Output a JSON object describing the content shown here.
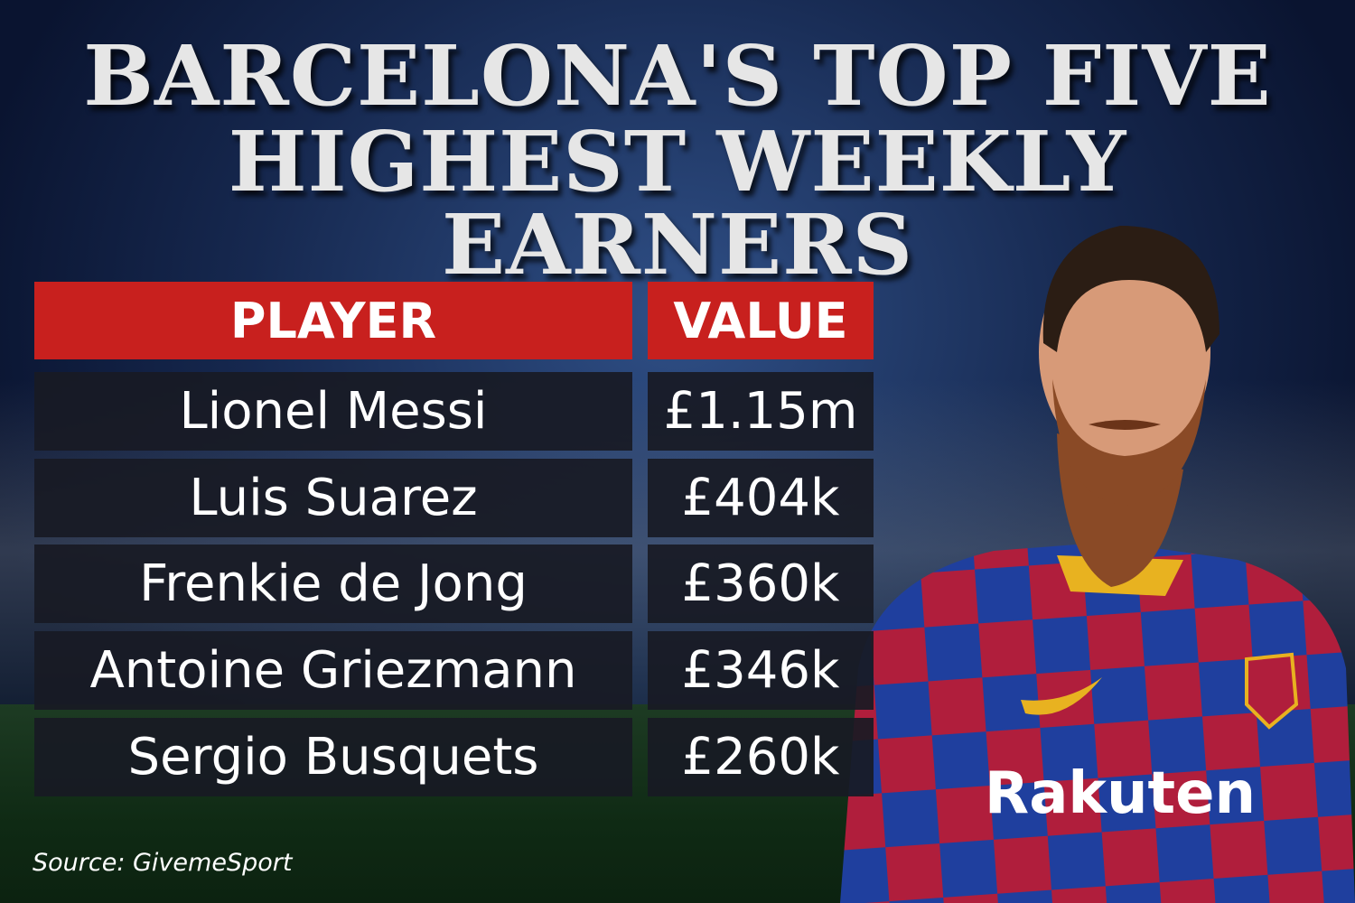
{
  "title": {
    "lines": [
      "BARCELONA'S TOP FIVE",
      "HIGHEST WEEKLY EARNERS"
    ]
  },
  "table": {
    "header": [
      "PLAYER",
      "VALUE"
    ],
    "rows": [
      [
        "Lionel Messi",
        "£1.15m"
      ],
      [
        "Luis Suarez",
        "£404k"
      ],
      [
        "Frenkie de Jong",
        "£360k"
      ],
      [
        "Antoine Griezmann",
        "£346k"
      ],
      [
        "Sergio Busquets",
        "£260k"
      ]
    ]
  },
  "source": "Source: GivemeSport"
}
